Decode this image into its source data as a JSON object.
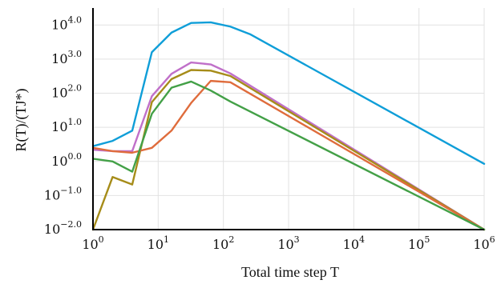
{
  "chart_data": {
    "type": "line",
    "title": "",
    "xlabel": "Total time step T",
    "ylabel": "R(T)/(TJ*)",
    "xscale": "log",
    "yscale": "log",
    "xlim": [
      1,
      1000000
    ],
    "ylim": [
      0.01,
      31622
    ],
    "grid": true,
    "legend": "none",
    "x_ticks": [
      {
        "value": 1,
        "base": "10",
        "exp": "0"
      },
      {
        "value": 10,
        "base": "10",
        "exp": "1"
      },
      {
        "value": 100,
        "base": "10",
        "exp": "2"
      },
      {
        "value": 1000,
        "base": "10",
        "exp": "3"
      },
      {
        "value": 10000,
        "base": "10",
        "exp": "4"
      },
      {
        "value": 100000,
        "base": "10",
        "exp": "5"
      },
      {
        "value": 1000000,
        "base": "10",
        "exp": "6"
      }
    ],
    "y_ticks": [
      {
        "value": 0.01,
        "base": "10",
        "exp": "−2.0"
      },
      {
        "value": 0.1,
        "base": "10",
        "exp": "−1.0"
      },
      {
        "value": 1,
        "base": "10",
        "exp": "0.0"
      },
      {
        "value": 10,
        "base": "10",
        "exp": "1.0"
      },
      {
        "value": 100,
        "base": "10",
        "exp": "2.0"
      },
      {
        "value": 1000,
        "base": "10",
        "exp": "3.0"
      },
      {
        "value": 10000,
        "base": "10",
        "exp": "4.0"
      }
    ],
    "series": [
      {
        "color": "#0f9ed8",
        "points": [
          [
            1,
            2.8
          ],
          [
            2,
            4
          ],
          [
            4,
            8
          ],
          [
            8,
            1600
          ],
          [
            16,
            6000
          ],
          [
            32,
            11500
          ],
          [
            64,
            12000
          ],
          [
            128,
            9000
          ],
          [
            256,
            5400
          ],
          [
            1000000,
            0.85
          ]
        ]
      },
      {
        "color": "#c070c9",
        "points": [
          [
            1,
            2.2
          ],
          [
            2,
            2
          ],
          [
            4,
            2
          ],
          [
            8,
            82
          ],
          [
            16,
            370
          ],
          [
            32,
            800
          ],
          [
            64,
            700
          ],
          [
            128,
            380
          ],
          [
            1000000,
            0.0044
          ]
        ]
      },
      {
        "color": "#a68c19",
        "points": [
          [
            1,
            0.007
          ],
          [
            2,
            0.35
          ],
          [
            4,
            0.21
          ],
          [
            8,
            55
          ],
          [
            16,
            260
          ],
          [
            32,
            480
          ],
          [
            64,
            460
          ],
          [
            128,
            320
          ],
          [
            1000000,
            0.0034
          ]
        ]
      },
      {
        "color": "#df6c3c",
        "points": [
          [
            1,
            2.5
          ],
          [
            2,
            2
          ],
          [
            4,
            1.8
          ],
          [
            8,
            2.5
          ],
          [
            16,
            8
          ],
          [
            32,
            52
          ],
          [
            64,
            230
          ],
          [
            128,
            210
          ],
          [
            1000000,
            0.0031
          ]
        ]
      },
      {
        "color": "#43a047",
        "points": [
          [
            1,
            1.2
          ],
          [
            2,
            1
          ],
          [
            4,
            0.5
          ],
          [
            8,
            25
          ],
          [
            16,
            145
          ],
          [
            32,
            220
          ],
          [
            64,
            120
          ],
          [
            128,
            57
          ],
          [
            1000000,
            0.0017
          ]
        ]
      }
    ]
  }
}
